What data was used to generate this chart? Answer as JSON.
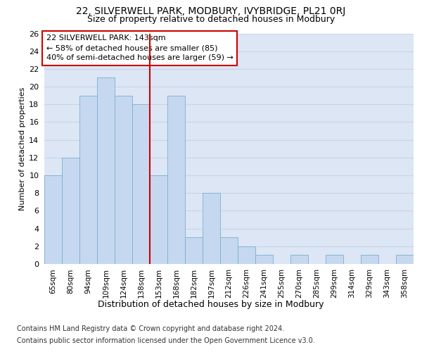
{
  "title1": "22, SILVERWELL PARK, MODBURY, IVYBRIDGE, PL21 0RJ",
  "title2": "Size of property relative to detached houses in Modbury",
  "xlabel": "Distribution of detached houses by size in Modbury",
  "ylabel": "Number of detached properties",
  "footer1": "Contains HM Land Registry data © Crown copyright and database right 2024.",
  "footer2": "Contains public sector information licensed under the Open Government Licence v3.0.",
  "annotation_line1": "22 SILVERWELL PARK: 143sqm",
  "annotation_line2": "← 58% of detached houses are smaller (85)",
  "annotation_line3": "40% of semi-detached houses are larger (59) →",
  "bar_labels": [
    "65sqm",
    "80sqm",
    "94sqm",
    "109sqm",
    "124sqm",
    "138sqm",
    "153sqm",
    "168sqm",
    "182sqm",
    "197sqm",
    "212sqm",
    "226sqm",
    "241sqm",
    "255sqm",
    "270sqm",
    "285sqm",
    "299sqm",
    "314sqm",
    "329sqm",
    "343sqm",
    "358sqm"
  ],
  "bar_values": [
    10,
    12,
    19,
    21,
    19,
    18,
    10,
    19,
    3,
    8,
    3,
    2,
    1,
    0,
    1,
    0,
    1,
    0,
    1,
    0,
    1
  ],
  "bar_color": "#c5d8ef",
  "bar_edge_color": "#7bafd4",
  "ref_line_x": 5.5,
  "ref_line_color": "#cc0000",
  "annotation_box_edge_color": "#cc0000",
  "ylim": [
    0,
    26
  ],
  "yticks": [
    0,
    2,
    4,
    6,
    8,
    10,
    12,
    14,
    16,
    18,
    20,
    22,
    24,
    26
  ],
  "grid_color": "#c8d4e8",
  "background_color": "#dce6f5",
  "title1_fontsize": 10,
  "title2_fontsize": 9,
  "xlabel_fontsize": 9,
  "ylabel_fontsize": 8,
  "annotation_fontsize": 8,
  "footer_fontsize": 7
}
